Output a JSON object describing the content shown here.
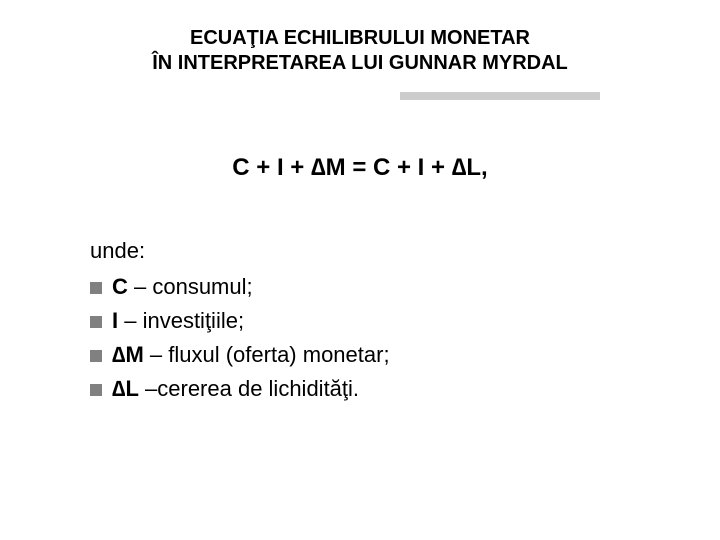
{
  "title": {
    "line1": "ECUAŢIA ECHILIBRULUI MONETAR",
    "line2": "ÎN INTERPRETAREA LUI GUNNAR MYRDAL"
  },
  "equation": "C + I + ∆M = C + I + ∆L,",
  "lead": "unde:",
  "items": [
    {
      "term": "C",
      "desc": " – consumul;"
    },
    {
      "term": "I",
      "desc": " – investiţiile;"
    },
    {
      "term": "∆M",
      "desc": " – fluxul (oferta) monetar;"
    },
    {
      "term": "∆L",
      "desc": " –cererea de lichidităţi."
    }
  ],
  "colors": {
    "background": "#ffffff",
    "text": "#000000",
    "bullet": "#808080",
    "underline": "#cccccc"
  },
  "fonts": {
    "title_size": 20,
    "equation_size": 24,
    "body_size": 22
  }
}
